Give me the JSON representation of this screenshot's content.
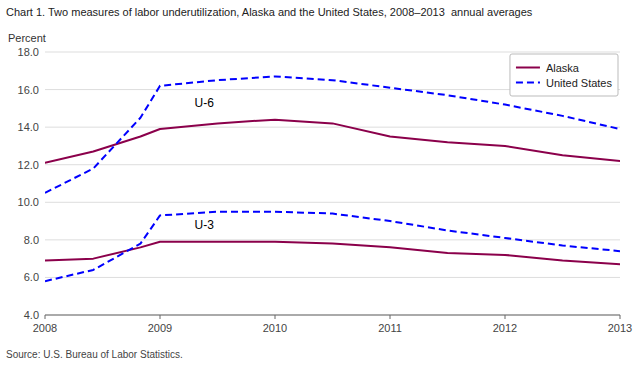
{
  "chart_data": {
    "type": "line",
    "title": "Chart 1. Two measures of labor underutilization, Alaska and the United States, 2008–2013  annual averages",
    "ylabel": "Percent",
    "source": "Source: U.S. Bureau of Labor Statistics.",
    "x": [
      2008,
      2008.42,
      2008.83,
      2009,
      2009.5,
      2010,
      2010.5,
      2011,
      2011.5,
      2012,
      2012.5,
      2013
    ],
    "series": [
      {
        "name": "Alaska",
        "color": "#8b004b",
        "line_style": "solid",
        "values": [
          12.1,
          12.7,
          13.5,
          13.9,
          14.2,
          14.4,
          14.2,
          13.5,
          13.2,
          13.0,
          12.5,
          12.2
        ]
      },
      {
        "name": "United States",
        "color": "#0000ff",
        "line_style": "dashed",
        "values": [
          10.5,
          11.8,
          14.5,
          16.2,
          16.5,
          16.7,
          16.5,
          16.1,
          15.7,
          15.2,
          14.6,
          13.9
        ]
      },
      {
        "color": "#8b004b",
        "line_style": "solid",
        "values": [
          6.9,
          7.0,
          7.6,
          7.9,
          7.9,
          7.9,
          7.8,
          7.6,
          7.3,
          7.2,
          6.9,
          6.7
        ]
      },
      {
        "color": "#0000ff",
        "line_style": "dashed",
        "values": [
          5.8,
          6.4,
          7.8,
          9.3,
          9.5,
          9.5,
          9.4,
          9.0,
          8.5,
          8.1,
          7.7,
          7.4
        ]
      }
    ],
    "annotations": [
      {
        "text": "U-6",
        "x": 2009.3,
        "y": 15.05
      },
      {
        "text": "U-3",
        "x": 2009.3,
        "y": 8.6
      }
    ],
    "xlim": [
      2008,
      2013
    ],
    "ylim": [
      4.0,
      18.0
    ],
    "xticks": [
      2008,
      2009,
      2010,
      2011,
      2012,
      2013
    ],
    "yticks": [
      {
        "value": 4.0,
        "label": "4.0"
      },
      {
        "value": 6.0,
        "label": "6.0"
      },
      {
        "value": 8.0,
        "label": "8.0"
      },
      {
        "value": 10.0,
        "label": "10.0"
      },
      {
        "value": 12.0,
        "label": "12.0"
      },
      {
        "value": 14.0,
        "label": "14.0"
      },
      {
        "value": 16.0,
        "label": "16.0"
      },
      {
        "value": 18.0,
        "label": "18.0"
      }
    ],
    "grid": true,
    "legend": "upper right"
  }
}
